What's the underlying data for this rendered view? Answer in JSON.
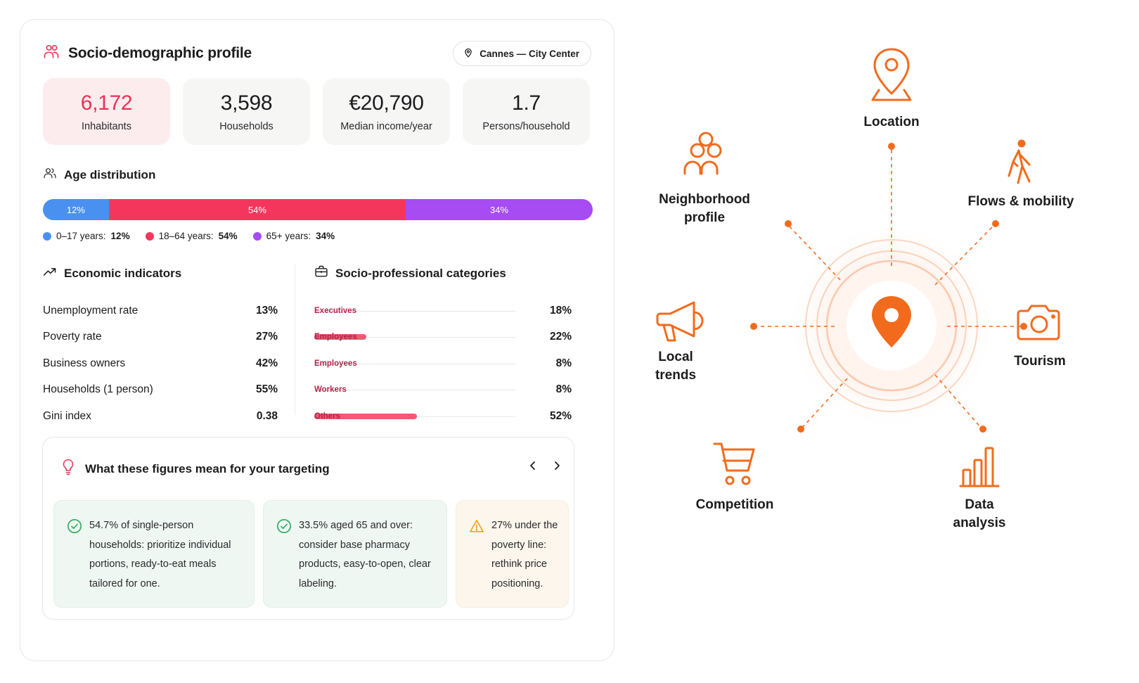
{
  "profile": {
    "title": "Socio-demographic profile",
    "location": "Cannes — City Center",
    "stats": [
      {
        "value": "6,172",
        "label": "Inhabitants"
      },
      {
        "value": "3,598",
        "label": "Households"
      },
      {
        "value": "€20,790",
        "label": "Median income/year"
      },
      {
        "value": "1.7",
        "label": "Persons/household"
      }
    ]
  },
  "age": {
    "title": "Age distribution",
    "segments": [
      {
        "label": "12%",
        "share": 12,
        "color": "#4a90f0"
      },
      {
        "label": "54%",
        "share": 54,
        "color": "#f5365c"
      },
      {
        "label": "34%",
        "share": 34,
        "color": "#a64cf2"
      }
    ],
    "legend": [
      {
        "name": "0–17 years:",
        "value": "12%",
        "color": "#4a90f0"
      },
      {
        "name": "18–64 years:",
        "value": "54%",
        "color": "#f5365c"
      },
      {
        "name": "65+ years:",
        "value": "34%",
        "color": "#a64cf2"
      }
    ]
  },
  "economic": {
    "title": "Economic indicators",
    "rows": [
      {
        "label": "Unemployment rate",
        "value": "13%"
      },
      {
        "label": "Poverty rate",
        "value": "27%"
      },
      {
        "label": "Business owners",
        "value": "42%"
      },
      {
        "label": "Households (1 person)",
        "value": "55%"
      },
      {
        "label": "Gini index",
        "value": "0.38"
      }
    ]
  },
  "socio": {
    "title": "Socio-professional categories",
    "rows": [
      {
        "label": "Executives",
        "value": "18%",
        "fill": 0
      },
      {
        "label": "Employees",
        "value": "22%",
        "fill": 0.26
      },
      {
        "label": "Employees",
        "value": "8%",
        "fill": 0
      },
      {
        "label": "Workers",
        "value": "8%",
        "fill": 0
      },
      {
        "label": "Others",
        "value": "52%",
        "fill": 0.51
      }
    ]
  },
  "insights": {
    "title": "What these figures mean for your targeting",
    "cards": [
      {
        "type": "check",
        "text": "54.7% of single-person households: prioritize individual portions, ready-to-eat meals tailored for one."
      },
      {
        "type": "check",
        "text": "33.5% aged 65 and over: consider base pharmacy products, easy-to-open, clear labeling."
      },
      {
        "type": "warning",
        "text": "27% under the poverty line: rethink price positioning."
      }
    ]
  },
  "diagram": {
    "accent": "#f26b1d",
    "nodes": [
      {
        "id": "location",
        "label": "Location",
        "icon": "map-pin-icon"
      },
      {
        "id": "flows",
        "label": "Flows & mobility",
        "icon": "walking-person-icon"
      },
      {
        "id": "tourism",
        "label": "Tourism",
        "icon": "camera-icon"
      },
      {
        "id": "data",
        "label": "Data\nanalysis",
        "icon": "bar-chart-icon"
      },
      {
        "id": "competition",
        "label": "Competition",
        "icon": "shopping-cart-icon"
      },
      {
        "id": "trends",
        "label": "Local\ntrends",
        "icon": "megaphone-icon"
      },
      {
        "id": "neighborhood",
        "label": "Neighborhood\nprofile",
        "icon": "people-icon"
      }
    ]
  }
}
